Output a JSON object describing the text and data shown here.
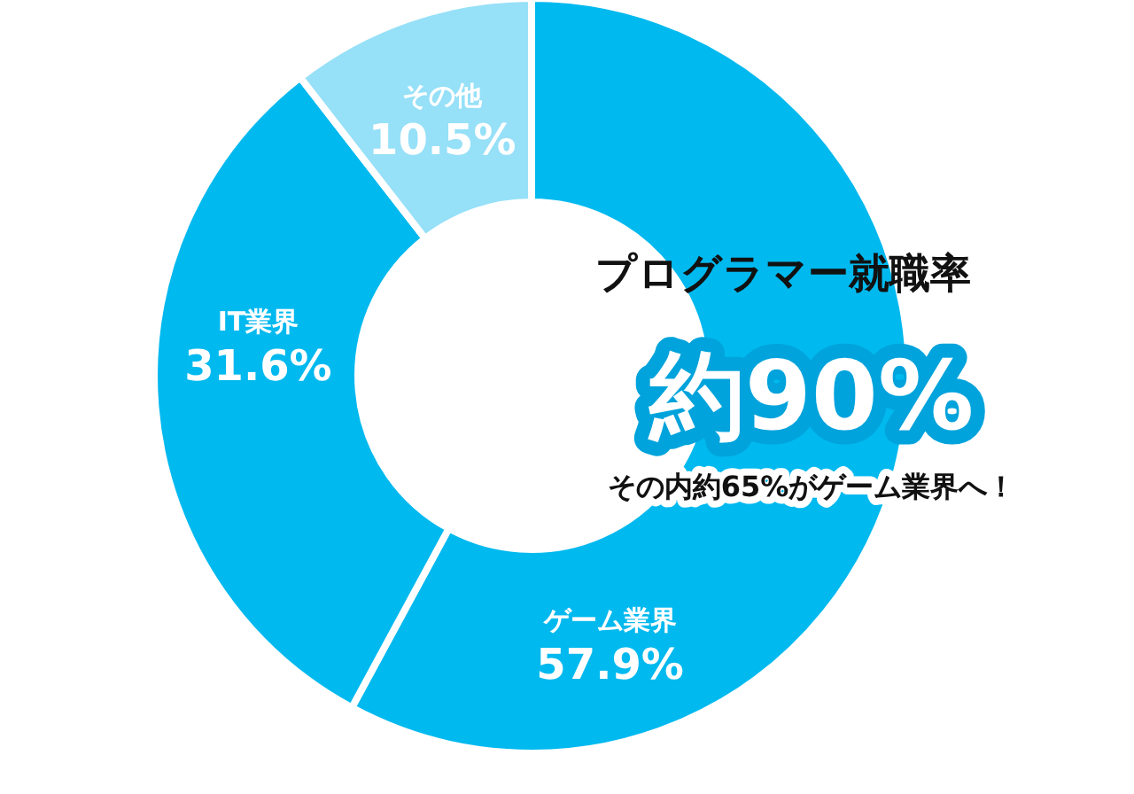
{
  "chart_data": {
    "type": "donut",
    "title": "プログラマー就職率",
    "categories": [
      "ゲーム業界",
      "IT業界",
      "その他"
    ],
    "values": [
      57.9,
      31.6,
      10.5
    ],
    "colors": [
      "#00b9ef",
      "#00b9ef",
      "#96e0f8"
    ],
    "value_labels": [
      "57.9%",
      "31.6%",
      "10.5%"
    ],
    "annotations": [
      "約90%",
      "その内約65%がゲーム業界へ！"
    ]
  }
}
